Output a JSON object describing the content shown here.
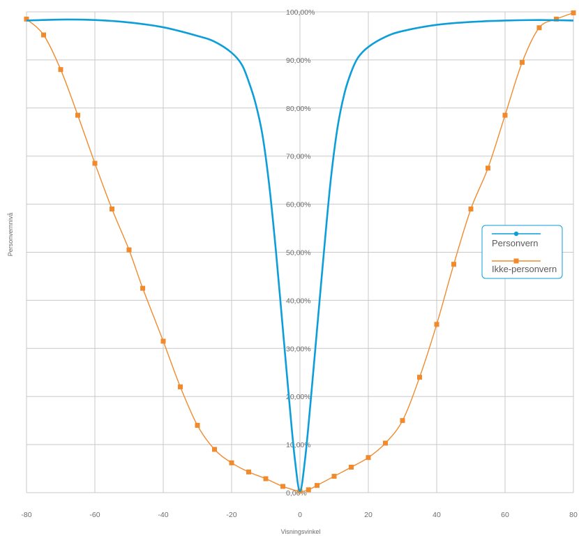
{
  "chart_data": {
    "type": "line",
    "xlabel": "Visningsvinkel",
    "ylabel": "Personvernnivå",
    "xlim": [
      -80,
      80
    ],
    "ylim": [
      0,
      100
    ],
    "x_ticks": [
      "-80",
      "-60",
      "-40",
      "-20",
      "0",
      "20",
      "40",
      "60",
      "80"
    ],
    "y_ticks": [
      "0,00%",
      "10,00%",
      "20,00%",
      "30,00%",
      "40,00%",
      "50,00%",
      "60,00%",
      "70,00%",
      "80,00%",
      "90,00%",
      "100,00%"
    ],
    "grid": true,
    "legend_position": "right",
    "series": [
      {
        "name": "Personvern",
        "color": "#0c9ed8",
        "marker": "circle",
        "show_markers": false,
        "points": [
          [
            -80,
            98.2
          ],
          [
            -70,
            98.4
          ],
          [
            -60,
            98.3
          ],
          [
            -50,
            97.8
          ],
          [
            -40,
            96.8
          ],
          [
            -30,
            95.0
          ],
          [
            -25,
            93.8
          ],
          [
            -20,
            91.5
          ],
          [
            -17,
            89.0
          ],
          [
            -15,
            85.5
          ],
          [
            -13,
            81.0
          ],
          [
            -11,
            74.5
          ],
          [
            -9,
            64.0
          ],
          [
            -7,
            50.0
          ],
          [
            -5,
            34.0
          ],
          [
            -3,
            18.0
          ],
          [
            -1.5,
            7.0
          ],
          [
            0,
            0.3
          ],
          [
            1.5,
            7.0
          ],
          [
            3,
            18.0
          ],
          [
            5,
            34.0
          ],
          [
            7,
            50.0
          ],
          [
            9,
            65.0
          ],
          [
            11,
            76.0
          ],
          [
            13,
            83.0
          ],
          [
            15,
            87.5
          ],
          [
            17,
            90.5
          ],
          [
            20,
            92.7
          ],
          [
            25,
            94.8
          ],
          [
            30,
            96.0
          ],
          [
            40,
            97.3
          ],
          [
            50,
            97.9
          ],
          [
            60,
            98.2
          ],
          [
            70,
            98.3
          ],
          [
            80,
            98.2
          ]
        ]
      },
      {
        "name": "Ikke-personvern",
        "color": "#f08a2c",
        "marker": "square",
        "show_markers": true,
        "points": [
          [
            -80,
            98.5
          ],
          [
            -75,
            95.2
          ],
          [
            -70,
            88.0
          ],
          [
            -65,
            78.5
          ],
          [
            -60,
            68.5
          ],
          [
            -55,
            59.0
          ],
          [
            -50,
            50.5
          ],
          [
            -46,
            42.5
          ],
          [
            -40,
            31.5
          ],
          [
            -35,
            22.0
          ],
          [
            -30,
            14.0
          ],
          [
            -25,
            9.0
          ],
          [
            -20,
            6.2
          ],
          [
            -15,
            4.3
          ],
          [
            -10,
            2.9
          ],
          [
            -5,
            1.3
          ],
          [
            0,
            0.3
          ],
          [
            2.5,
            0.6
          ],
          [
            5,
            1.5
          ],
          [
            10,
            3.4
          ],
          [
            15,
            5.3
          ],
          [
            20,
            7.3
          ],
          [
            25,
            10.3
          ],
          [
            30,
            15.0
          ],
          [
            35,
            24.0
          ],
          [
            40,
            35.0
          ],
          [
            45,
            47.5
          ],
          [
            50,
            59.0
          ],
          [
            55,
            67.5
          ],
          [
            60,
            78.5
          ],
          [
            65,
            89.5
          ],
          [
            70,
            96.7
          ],
          [
            75,
            98.5
          ],
          [
            80,
            99.8
          ]
        ]
      }
    ]
  }
}
